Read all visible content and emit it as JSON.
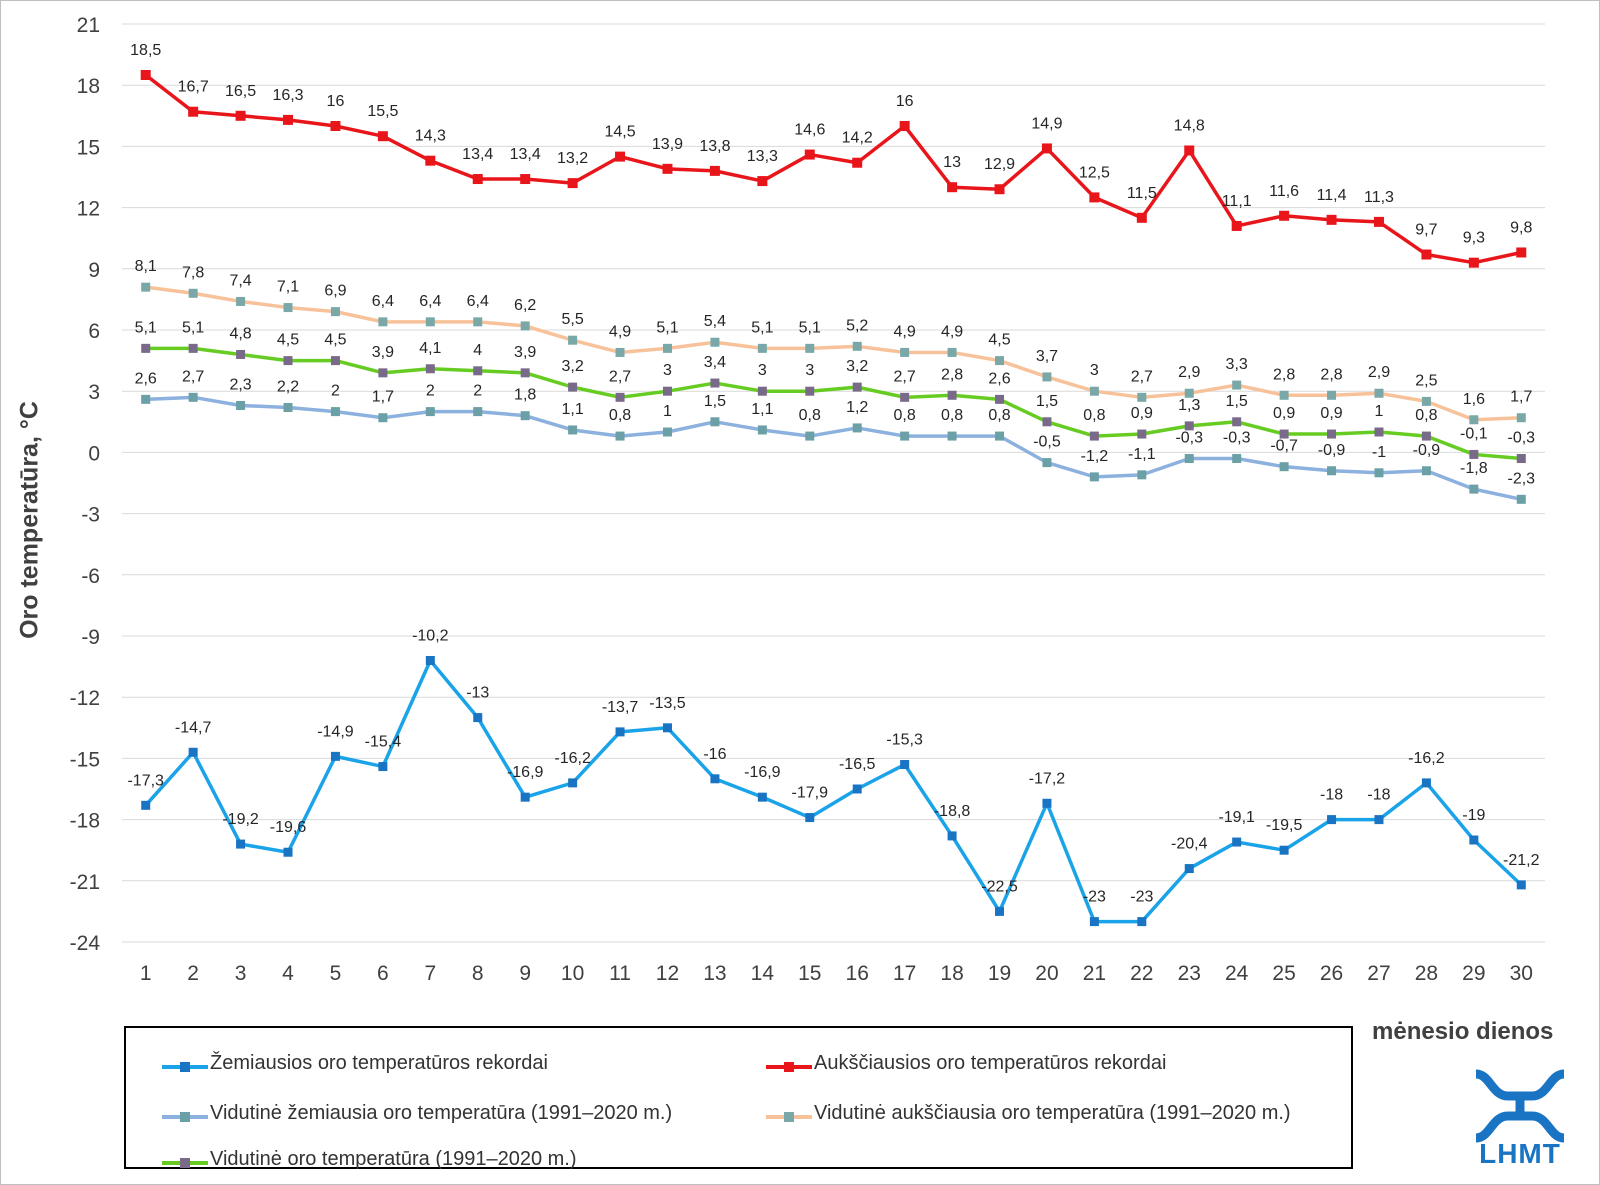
{
  "chart_data": {
    "type": "line",
    "ylabel": "Oro temperatūra, °C",
    "xlabel": "mėnesio dienos",
    "ylim": [
      -24,
      21
    ],
    "yticks": [
      21,
      18,
      15,
      12,
      9,
      6,
      3,
      0,
      -3,
      -6,
      -9,
      -12,
      -15,
      -18,
      -21,
      -24
    ],
    "x": [
      1,
      2,
      3,
      4,
      5,
      6,
      7,
      8,
      9,
      10,
      11,
      12,
      13,
      14,
      15,
      16,
      17,
      18,
      19,
      20,
      21,
      22,
      23,
      24,
      25,
      26,
      27,
      28,
      29,
      30
    ],
    "grid": true,
    "legend_position": "bottom",
    "series": [
      {
        "name": "Žemiausios oro temperatūros rekordai",
        "color": "#1aa3e8",
        "marker_color": "#1a74c4",
        "values": [
          -17.3,
          -14.7,
          -19.2,
          -19.6,
          -14.9,
          -15.4,
          -10.2,
          -13,
          -16.9,
          -16.2,
          -13.7,
          -13.5,
          -16,
          -16.9,
          -17.9,
          -16.5,
          -15.3,
          -18.8,
          -22.5,
          -17.2,
          -23,
          -23,
          -20.4,
          -19.1,
          -19.5,
          -18,
          -18,
          -16.2,
          -19,
          -21.2
        ],
        "labels": [
          "-17,3",
          "-14,7",
          "-19,2",
          "-19,6",
          "-14,9",
          "-15,4",
          "-10,2",
          "-13",
          "-16,9",
          "-16,2",
          "-13,7",
          "-13,5",
          "-16",
          "-16,9",
          "-17,9",
          "-16,5",
          "-15,3",
          "-18,8",
          "-22,5",
          "-17,2",
          "-23",
          "-23",
          "-20,4",
          "-19,1",
          "-19,5",
          "-18",
          "-18",
          "-16,2",
          "-19",
          "-21,2"
        ]
      },
      {
        "name": "Aukščiausios oro temperatūros rekordai",
        "color": "#e8161b",
        "marker_color": "#e8161b",
        "values": [
          18.5,
          16.7,
          16.5,
          16.3,
          16,
          15.5,
          14.3,
          13.4,
          13.4,
          13.2,
          14.5,
          13.9,
          13.8,
          13.3,
          14.6,
          14.2,
          16,
          13,
          12.9,
          14.9,
          12.5,
          11.5,
          14.8,
          11.1,
          11.6,
          11.4,
          11.3,
          9.7,
          9.3,
          9.8
        ],
        "labels": [
          "18,5",
          "16,7",
          "16,5",
          "16,3",
          "16",
          "15,5",
          "14,3",
          "13,4",
          "13,4",
          "13,2",
          "14,5",
          "13,9",
          "13,8",
          "13,3",
          "14,6",
          "14,2",
          "16",
          "13",
          "12,9",
          "14,9",
          "12,5",
          "11,5",
          "14,8",
          "11,1",
          "11,6",
          "11,4",
          "11,3",
          "9,7",
          "9,3",
          "9,8"
        ]
      },
      {
        "name": "Vidutinė žemiausia oro temperatūra (1991–2020 m.)",
        "color": "#8cb1de",
        "marker_color": "#6aa0a6",
        "values": [
          2.6,
          2.7,
          2.3,
          2.2,
          2,
          1.7,
          2,
          2,
          1.8,
          1.1,
          0.8,
          1,
          1.5,
          1.1,
          0.8,
          1.2,
          0.8,
          0.8,
          0.8,
          -0.5,
          -1.2,
          -1.1,
          -0.3,
          -0.3,
          -0.7,
          -0.9,
          -1,
          -0.9,
          -1.8,
          -2.3
        ],
        "labels": [
          "2,6",
          "2,7",
          "2,3",
          "2,2",
          "2",
          "1,7",
          "2",
          "2",
          "1,8",
          "1,1",
          "0,8",
          "1",
          "1,5",
          "1,1",
          "0,8",
          "1,2",
          "0,8",
          "0,8",
          "0,8",
          "-0,5",
          "-1,2",
          "-1,1",
          "-0,3",
          "-0,3",
          "-0,7",
          "-0,9",
          "-1",
          "-0,9",
          "-1,8",
          "-2,3"
        ]
      },
      {
        "name": "Vidutinė aukščiausia oro temperatūra (1991–2020 m.)",
        "color": "#f7c29a",
        "marker_color": "#7aa8a8",
        "values": [
          8.1,
          7.8,
          7.4,
          7.1,
          6.9,
          6.4,
          6.4,
          6.4,
          6.2,
          5.5,
          4.9,
          5.1,
          5.4,
          5.1,
          5.1,
          5.2,
          4.9,
          4.9,
          4.5,
          3.7,
          3,
          2.7,
          2.9,
          3.3,
          2.8,
          2.8,
          2.9,
          2.5,
          1.6,
          1.7
        ],
        "labels": [
          "8,1",
          "7,8",
          "7,4",
          "7,1",
          "6,9",
          "6,4",
          "6,4",
          "6,4",
          "6,2",
          "5,5",
          "4,9",
          "5,1",
          "5,4",
          "5,1",
          "5,1",
          "5,2",
          "4,9",
          "4,9",
          "4,5",
          "3,7",
          "3",
          "2,7",
          "2,9",
          "3,3",
          "2,8",
          "2,8",
          "2,9",
          "2,5",
          "1,6",
          "1,7"
        ]
      },
      {
        "name": "Vidutinė oro temperatūra (1991–2020 m.)",
        "color": "#66cc22",
        "marker_color": "#7a6a8a",
        "values": [
          5.1,
          5.1,
          4.8,
          4.5,
          4.5,
          3.9,
          4.1,
          4,
          3.9,
          3.2,
          2.7,
          3,
          3.4,
          3,
          3,
          3.2,
          2.7,
          2.8,
          2.6,
          1.5,
          0.8,
          0.9,
          1.3,
          1.5,
          0.9,
          0.9,
          1,
          0.8,
          -0.1,
          -0.3
        ],
        "labels": [
          "5,1",
          "5,1",
          "4,8",
          "4,5",
          "4,5",
          "3,9",
          "4,1",
          "4",
          "3,9",
          "3,2",
          "2,7",
          "3",
          "3,4",
          "3",
          "3",
          "3,2",
          "2,7",
          "2,8",
          "2,6",
          "1,5",
          "0,8",
          "0,9",
          "1,3",
          "1,5",
          "0,9",
          "0,9",
          "1",
          "0,8",
          "-0,1",
          "-0,3"
        ]
      }
    ]
  },
  "logo": {
    "text": "LHMT",
    "color": "#1a74c4"
  }
}
